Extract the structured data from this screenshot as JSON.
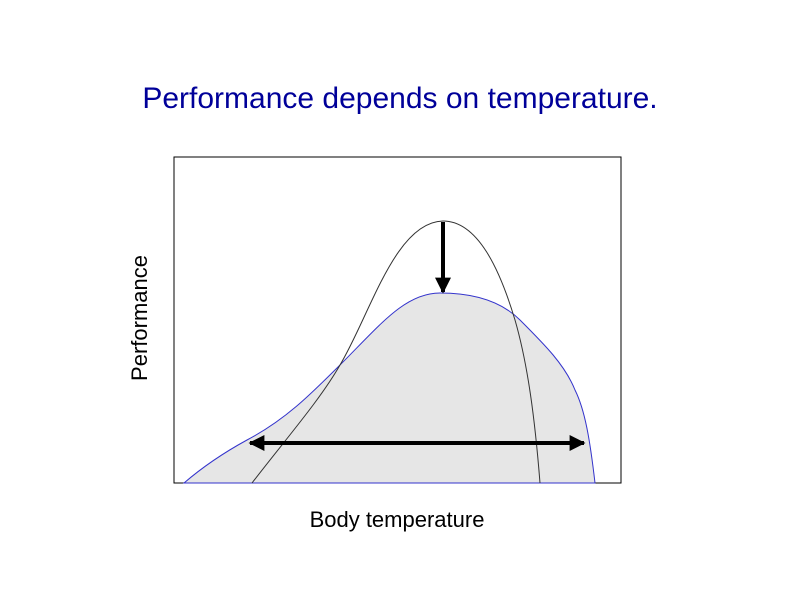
{
  "title": "Performance depends on temperature.",
  "x_label": "Body temperature",
  "y_label": "Performance"
}
